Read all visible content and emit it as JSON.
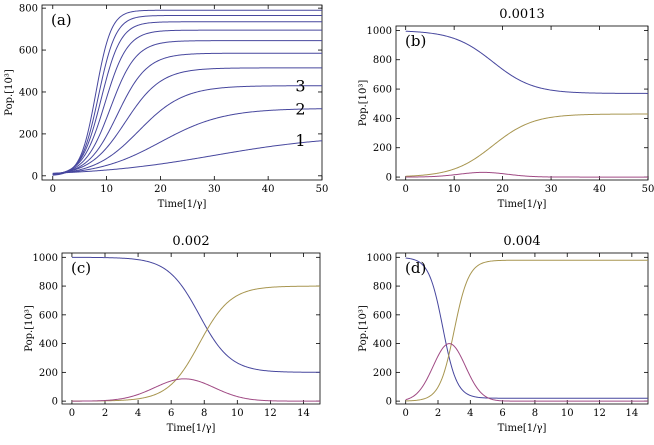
{
  "chart_data": [
    {
      "id": "a",
      "type": "line",
      "panel_label": "(a)",
      "title": "",
      "xlabel": "Time[1/γ]",
      "ylabel": "Pop.[10³]",
      "xlim": [
        -2,
        50
      ],
      "ylim": [
        -20,
        815
      ],
      "xticks": [
        0,
        10,
        20,
        30,
        40,
        50
      ],
      "yticks": [
        0,
        200,
        400,
        600,
        800
      ],
      "colors": {
        "curve": "#47479e"
      },
      "curve_labels": [
        {
          "text": "1",
          "x": 46,
          "y": 170
        },
        {
          "text": "2",
          "x": 46,
          "y": 320
        },
        {
          "text": "3",
          "x": 46,
          "y": 430
        }
      ],
      "series": [
        {
          "name": "curve-1",
          "type": "logistic",
          "L": 195,
          "k": 0.09,
          "t0": 30,
          "v0": 0
        },
        {
          "name": "curve-2",
          "type": "logistic",
          "L": 322,
          "k": 0.17,
          "t0": 20,
          "v0": 0
        },
        {
          "name": "curve-3",
          "type": "logistic",
          "L": 430,
          "k": 0.24,
          "t0": 16,
          "v0": 0
        },
        {
          "name": "curve-4",
          "type": "logistic",
          "L": 515,
          "k": 0.3,
          "t0": 13.5,
          "v0": 0
        },
        {
          "name": "curve-5",
          "type": "logistic",
          "L": 585,
          "k": 0.36,
          "t0": 12,
          "v0": 0
        },
        {
          "name": "curve-6",
          "type": "logistic",
          "L": 645,
          "k": 0.42,
          "t0": 10.7,
          "v0": 0
        },
        {
          "name": "curve-7",
          "type": "logistic",
          "L": 695,
          "k": 0.48,
          "t0": 9.7,
          "v0": 0
        },
        {
          "name": "curve-8",
          "type": "logistic",
          "L": 735,
          "k": 0.55,
          "t0": 9.0,
          "v0": 0
        },
        {
          "name": "curve-9",
          "type": "logistic",
          "L": 765,
          "k": 0.62,
          "t0": 8.5,
          "v0": 0
        },
        {
          "name": "curve-10",
          "type": "logistic",
          "L": 790,
          "k": 0.7,
          "t0": 8.0,
          "v0": 0
        }
      ]
    },
    {
      "id": "b",
      "type": "line",
      "panel_label": "(b)",
      "title": "0.0013",
      "xlabel": "Time[1/γ]",
      "ylabel": "Pop.[10³]",
      "xlim": [
        -2,
        50
      ],
      "ylim": [
        -20,
        1030
      ],
      "xticks": [
        0,
        10,
        20,
        30,
        40,
        50
      ],
      "yticks": [
        0,
        200,
        400,
        600,
        800,
        1000
      ],
      "series": [
        {
          "name": "blue",
          "color": "#47479e",
          "type": "logistic",
          "L": -430,
          "k": 0.24,
          "t0": 18,
          "v0": 1000
        },
        {
          "name": "tan",
          "color": "#a89650",
          "type": "logistic",
          "L": 430,
          "k": 0.24,
          "t0": 18,
          "v0": 0
        },
        {
          "name": "magenta",
          "color": "#a04a84",
          "type": "gauss",
          "A": 32,
          "mu": 16,
          "sigma": 5
        }
      ]
    },
    {
      "id": "c",
      "type": "line",
      "panel_label": "(c)",
      "title": "0.002",
      "xlabel": "Time[1/γ]",
      "ylabel": "Pop.[10³]",
      "xlim": [
        -0.6,
        15
      ],
      "ylim": [
        -20,
        1030
      ],
      "xticks": [
        0,
        2,
        4,
        6,
        8,
        10,
        12,
        14
      ],
      "yticks": [
        0,
        200,
        400,
        600,
        800,
        1000
      ],
      "series": [
        {
          "name": "blue",
          "color": "#47479e",
          "type": "logistic",
          "L": -800,
          "k": 1.05,
          "t0": 7.7,
          "v0": 1000
        },
        {
          "name": "tan",
          "color": "#a89650",
          "type": "logistic",
          "L": 800,
          "k": 1.05,
          "t0": 7.7,
          "v0": 0
        },
        {
          "name": "magenta",
          "color": "#a04a84",
          "type": "gauss",
          "A": 155,
          "mu": 6.8,
          "sigma": 1.8
        }
      ]
    },
    {
      "id": "d",
      "type": "line",
      "panel_label": "(d)",
      "title": "0.004",
      "xlabel": "Time[1/γ]",
      "ylabel": "Pop.[10³]",
      "xlim": [
        -0.6,
        15
      ],
      "ylim": [
        -20,
        1030
      ],
      "xticks": [
        0,
        2,
        4,
        6,
        8,
        10,
        12,
        14
      ],
      "yticks": [
        0,
        200,
        400,
        600,
        800,
        1000
      ],
      "series": [
        {
          "name": "blue",
          "color": "#47479e",
          "type": "logistic",
          "L": -980,
          "k": 2.3,
          "t0": 2.3,
          "v0": 1000
        },
        {
          "name": "tan",
          "color": "#a89650",
          "type": "logistic",
          "L": 980,
          "k": 2.2,
          "t0": 3.0,
          "v0": 0
        },
        {
          "name": "magenta",
          "color": "#a04a84",
          "type": "gauss",
          "A": 400,
          "mu": 2.7,
          "sigma": 1.0
        }
      ]
    }
  ]
}
